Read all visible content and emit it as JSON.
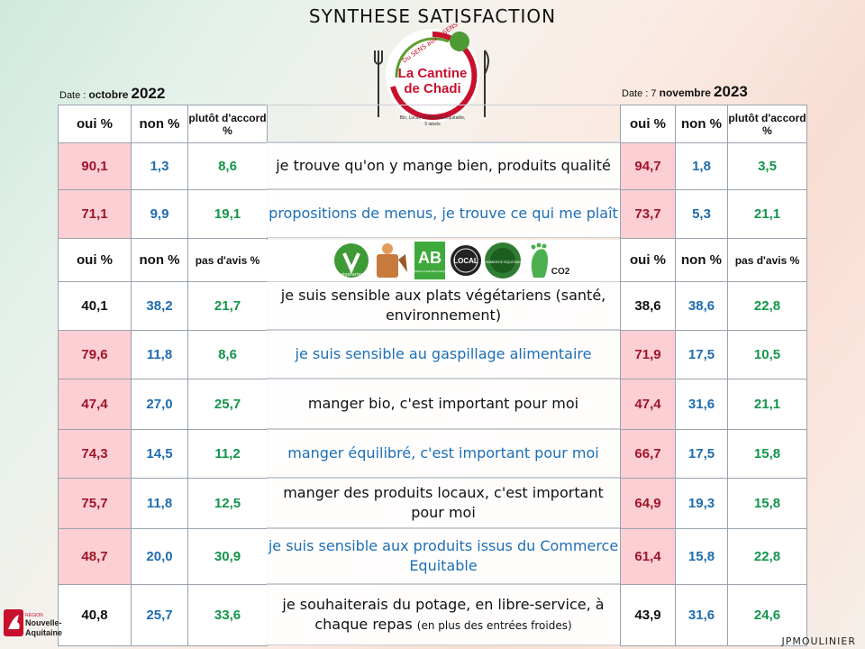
{
  "title": "SYNTHESE SATISFACTION",
  "logo": {
    "name": "La Cantine de Chadi",
    "line1": "La Cantine",
    "line2": "de Chadi",
    "arc": "Du SENS aux 5 SENS",
    "tagline": "Bio, Local, Commerce Equitable,",
    "tagline2": "5 labels"
  },
  "left_date": {
    "prefix": "Date :",
    "month": "octobre",
    "year": "2022"
  },
  "right_date": {
    "prefix": "Date :",
    "day": "7",
    "month": "novembre",
    "year": "2023"
  },
  "headers_a": {
    "oui": "oui %",
    "non": "non %",
    "third": "plutôt d'accord %"
  },
  "headers_b": {
    "oui": "oui %",
    "non": "non %",
    "third": "pas d'avis %"
  },
  "icons": [
    "vegetarien-icon",
    "compost-icon",
    "ab-bio-icon",
    "local-icon",
    "commerce-equitable-icon",
    "co2-footprint-icon"
  ],
  "icon_labels": {
    "veg": "végétarien",
    "ab": "AB",
    "ab_sub": "AGRICULTURE BIOLOGIQUE",
    "local": "LOCAL",
    "ce": "COMMERCE ÉQUITABLE",
    "co2": "CO2"
  },
  "rows": [
    {
      "q": "je trouve qu'on y mange bien, produits qualité",
      "q_color": "black",
      "y2022": [
        "90,1",
        "1,3",
        "8,6"
      ],
      "y2023": [
        "94,7",
        "1,8",
        "3,5"
      ]
    },
    {
      "q": "propositions de menus, je trouve ce qui me plaît",
      "q_color": "blue",
      "y2022": [
        "71,1",
        "9,9",
        "19,1"
      ],
      "y2023": [
        "73,7",
        "5,3",
        "21,1"
      ]
    },
    {
      "q": "je suis sensible aux plats végétariens (santé, environnement)",
      "q_color": "black",
      "y2022": [
        "40,1",
        "38,2",
        "21,7"
      ],
      "y2023": [
        "38,6",
        "38,6",
        "22,8"
      ]
    },
    {
      "q": "je suis sensible au gaspillage alimentaire",
      "q_color": "blue",
      "y2022": [
        "79,6",
        "11,8",
        "8,6"
      ],
      "y2023": [
        "71,9",
        "17,5",
        "10,5"
      ]
    },
    {
      "q": "manger bio, c'est important pour moi",
      "q_color": "black",
      "y2022": [
        "47,4",
        "27,0",
        "25,7"
      ],
      "y2023": [
        "47,4",
        "31,6",
        "21,1"
      ]
    },
    {
      "q": "manger équilibré, c'est important pour moi",
      "q_color": "blue",
      "y2022": [
        "74,3",
        "14,5",
        "11,2"
      ],
      "y2023": [
        "66,7",
        "17,5",
        "15,8"
      ]
    },
    {
      "q": "manger des produits locaux, c'est important pour moi",
      "q_color": "black",
      "y2022": [
        "75,7",
        "11,8",
        "12,5"
      ],
      "y2023": [
        "64,9",
        "19,3",
        "15,8"
      ]
    },
    {
      "q": "je suis sensible aux produits issus du Commerce Equitable",
      "q_color": "blue",
      "y2022": [
        "48,7",
        "20,0",
        "30,9"
      ],
      "y2023": [
        "61,4",
        "15,8",
        "22,8"
      ]
    },
    {
      "q": "je souhaiterais du potage, en libre-service, à chaque repas",
      "q_sub": "(en plus des entrées froides)",
      "q_color": "black",
      "y2022": [
        "40,8",
        "25,7",
        "33,6"
      ],
      "y2023": [
        "43,9",
        "31,6",
        "24,6"
      ]
    }
  ],
  "region": {
    "small": "RÉGION",
    "line1": "Nouvelle-",
    "line2": "Aquitaine"
  },
  "signature": "JPMOULINIER"
}
